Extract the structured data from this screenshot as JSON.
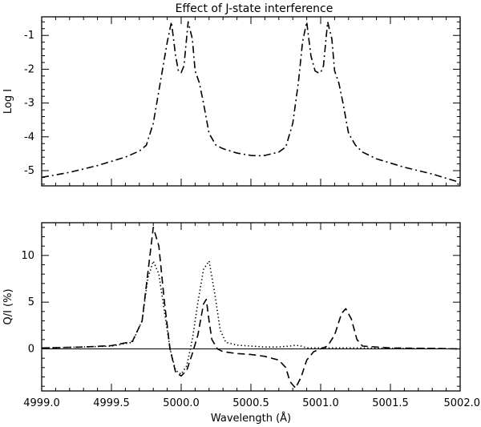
{
  "chart_data": [
    {
      "type": "line",
      "title": "Effect of J-state interference",
      "ylabel": "Log I",
      "xlabel": "",
      "xlim": [
        4999.0,
        5002.0
      ],
      "ylim": [
        -5.45,
        -0.45
      ],
      "yticks": [
        -5,
        -4,
        -3,
        -2,
        -1
      ],
      "series": [
        {
          "style": "dash-dot",
          "x": [
            4999.0,
            4999.2,
            4999.4,
            4999.6,
            4999.7,
            4999.75,
            4999.8,
            4999.85,
            4999.9,
            4999.93,
            4999.96,
            4999.98,
            5000.0,
            5000.02,
            5000.05,
            5000.08,
            5000.1,
            5000.13,
            5000.16,
            5000.2,
            5000.25,
            5000.3,
            5000.4,
            5000.5,
            5000.55,
            5000.6,
            5000.7,
            5000.75,
            5000.8,
            5000.84,
            5000.87,
            5000.9,
            5000.93,
            5000.96,
            5000.98,
            5001.0,
            5001.02,
            5001.05,
            5001.08,
            5001.1,
            5001.13,
            5001.16,
            5001.2,
            5001.25,
            5001.3,
            5001.4,
            5001.6,
            5001.8,
            5002.0
          ],
          "y": [
            -5.2,
            -5.05,
            -4.85,
            -4.6,
            -4.42,
            -4.25,
            -3.6,
            -2.4,
            -1.2,
            -0.6,
            -1.6,
            -2.05,
            -2.1,
            -1.9,
            -0.6,
            -1.1,
            -2.05,
            -2.4,
            -3.0,
            -3.9,
            -4.25,
            -4.35,
            -4.48,
            -4.55,
            -4.56,
            -4.55,
            -4.45,
            -4.3,
            -3.6,
            -2.4,
            -1.2,
            -0.6,
            -1.6,
            -2.05,
            -2.1,
            -2.1,
            -1.9,
            -0.6,
            -1.1,
            -2.05,
            -2.4,
            -3.0,
            -3.9,
            -4.25,
            -4.45,
            -4.65,
            -4.9,
            -5.1,
            -5.35
          ]
        }
      ]
    },
    {
      "type": "line",
      "title": "",
      "ylabel": "Q/I (%)",
      "xlabel": "Wavelength (Å)",
      "xlim": [
        4999.0,
        5002.0
      ],
      "ylim": [
        -4.5,
        13.5
      ],
      "yticks": [
        0,
        5,
        10
      ],
      "xticks": [
        "4999.0",
        "4999.5",
        "5000.0",
        "5000.5",
        "5001.0",
        "5001.5",
        "5002.0"
      ],
      "series": [
        {
          "style": "dashed",
          "x": [
            4999.0,
            4999.3,
            4999.5,
            4999.65,
            4999.72,
            4999.76,
            4999.8,
            4999.84,
            4999.88,
            4999.92,
            4999.96,
            5000.0,
            5000.04,
            5000.08,
            5000.12,
            5000.16,
            5000.18,
            5000.2,
            5000.22,
            5000.26,
            5000.3,
            5000.4,
            5000.5,
            5000.6,
            5000.7,
            5000.75,
            5000.78,
            5000.82,
            5000.86,
            5000.9,
            5000.95,
            5001.0,
            5001.05,
            5001.1,
            5001.15,
            5001.18,
            5001.22,
            5001.26,
            5001.3,
            5001.5,
            5001.8,
            5002.0
          ],
          "y": [
            0.1,
            0.2,
            0.35,
            0.8,
            3.0,
            8.0,
            13.0,
            11.0,
            5.0,
            0.0,
            -2.5,
            -2.9,
            -2.3,
            -0.5,
            1.5,
            4.8,
            5.3,
            3.0,
            1.0,
            0.0,
            -0.3,
            -0.5,
            -0.6,
            -0.8,
            -1.2,
            -2.0,
            -3.5,
            -4.2,
            -3.0,
            -1.2,
            -0.3,
            0.0,
            0.3,
            1.5,
            3.8,
            4.3,
            3.2,
            1.0,
            0.3,
            0.1,
            0.05,
            0.0
          ]
        },
        {
          "style": "dotted",
          "x": [
            4999.0,
            4999.3,
            4999.5,
            4999.65,
            4999.72,
            4999.76,
            4999.8,
            4999.84,
            4999.88,
            4999.92,
            4999.96,
            5000.0,
            5000.04,
            5000.08,
            5000.12,
            5000.16,
            5000.2,
            5000.24,
            5000.28,
            5000.32,
            5000.4,
            5000.5,
            5000.6,
            5000.7,
            5000.78,
            5000.82,
            5000.86,
            5000.9,
            5001.0,
            5001.1,
            5001.2,
            5001.3,
            5001.5,
            5001.8,
            5002.0
          ],
          "y": [
            0.1,
            0.2,
            0.3,
            0.7,
            3.0,
            7.5,
            9.4,
            8.0,
            4.0,
            0.0,
            -2.3,
            -2.7,
            -1.8,
            1.0,
            5.0,
            8.5,
            9.4,
            6.0,
            2.0,
            0.7,
            0.4,
            0.3,
            0.2,
            0.2,
            0.3,
            0.4,
            0.3,
            0.1,
            0.1,
            0.1,
            0.1,
            0.1,
            0.05,
            0.05,
            0.0
          ]
        }
      ]
    }
  ]
}
